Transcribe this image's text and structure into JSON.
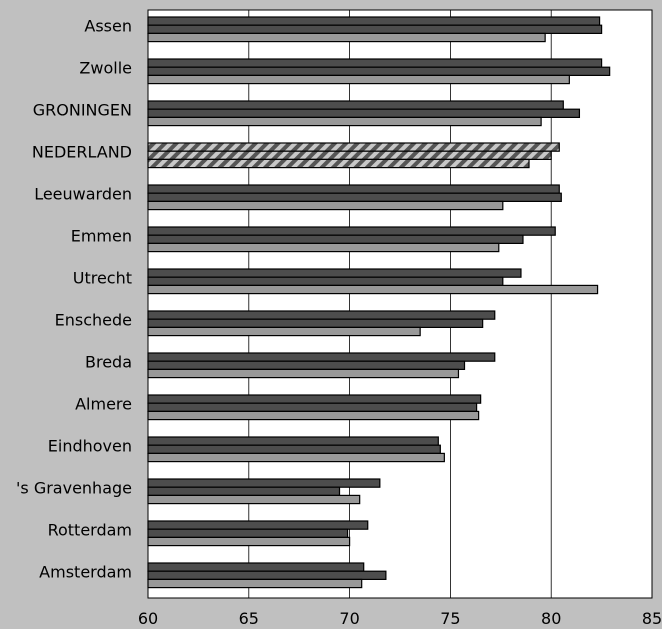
{
  "chart_data": {
    "type": "bar",
    "orientation": "horizontal",
    "title": "",
    "xlabel": "",
    "ylabel": "",
    "xlim": [
      60,
      85
    ],
    "xticks": [
      60,
      65,
      70,
      75,
      80,
      85
    ],
    "gridlines": {
      "x": true,
      "y": false
    },
    "legend": "none",
    "categories": [
      "Assen",
      "Zwolle",
      "GRONINGEN",
      "NEDERLAND",
      "Leeuwarden",
      "Emmen",
      "Utrecht",
      "Enschede",
      "Breda",
      "Almere",
      "Eindhoven",
      "'s Gravenhage",
      "Rotterdam",
      "Amsterdam"
    ],
    "highlighted_category": "NEDERLAND",
    "series": [
      {
        "values": [
          82.4,
          82.5,
          80.6,
          80.4,
          80.4,
          80.2,
          78.5,
          77.2,
          77.2,
          76.5,
          74.4,
          71.5,
          70.9,
          70.7
        ]
      },
      {
        "values": [
          82.5,
          82.9,
          81.4,
          80.0,
          80.5,
          78.6,
          77.6,
          76.6,
          75.7,
          76.3,
          74.5,
          69.5,
          69.9,
          71.8
        ]
      },
      {
        "values": [
          79.7,
          80.9,
          79.5,
          78.9,
          77.6,
          77.4,
          82.3,
          73.5,
          75.4,
          76.4,
          74.7,
          70.5,
          70.0,
          70.6
        ]
      }
    ],
    "colors": {
      "plot_background": "#ffffff",
      "page_background": "#c0c0c0",
      "series_fills": [
        "#4d4d4d",
        "#4d4d4d",
        "#999999"
      ],
      "bar_outline": "#000000",
      "highlight_stripe_light": "#c8c8c8",
      "highlight_stripe_dark": "#555555",
      "gridline": "#000000"
    }
  }
}
